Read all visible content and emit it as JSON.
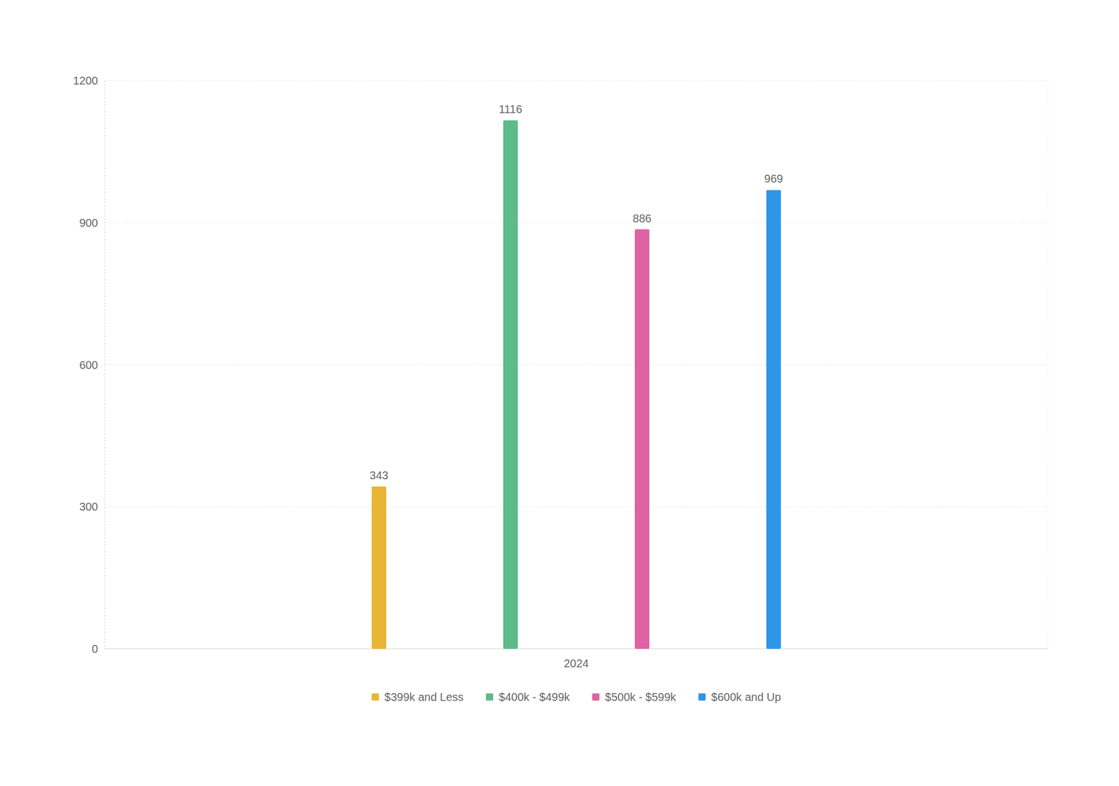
{
  "chart_data": {
    "type": "bar",
    "categories": [
      "2024"
    ],
    "series": [
      {
        "name": "$399k and Less",
        "color": "#E8B535",
        "values": [
          343
        ]
      },
      {
        "name": "$400k - $499k",
        "color": "#5DBB8A",
        "values": [
          1116
        ]
      },
      {
        "name": "$500k - $599k",
        "color": "#DE62A4",
        "values": [
          886
        ]
      },
      {
        "name": "$600k and Up",
        "color": "#2E96E8",
        "values": [
          969
        ]
      }
    ],
    "ylim": [
      0,
      1200
    ],
    "yticks": [
      0,
      300,
      600,
      900,
      1200
    ],
    "grid": true,
    "legend": "bottom",
    "data_labels": true
  }
}
